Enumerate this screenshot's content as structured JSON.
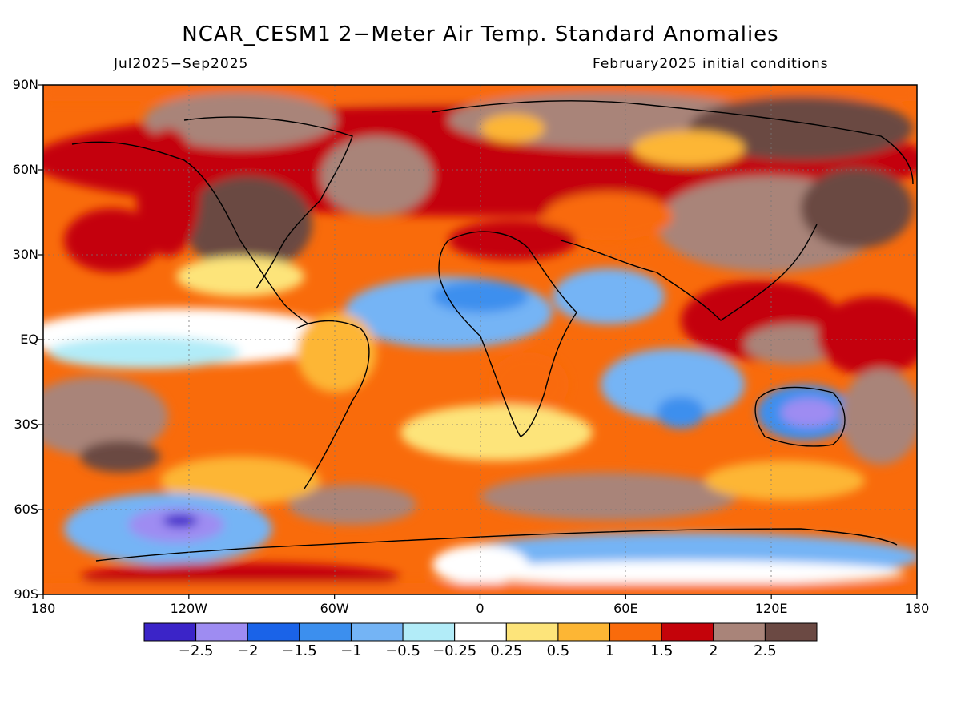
{
  "title": "NCAR_CESM1 2−Meter Air Temp. Standard Anomalies",
  "period": "Jul2025−Sep2025",
  "initial_conditions": "February2025 initial conditions",
  "lat_labels": [
    "90N",
    "60N",
    "30N",
    "EQ",
    "30S",
    "60S",
    "90S"
  ],
  "lon_labels": [
    "180",
    "120W",
    "60W",
    "0",
    "60E",
    "120E",
    "180"
  ],
  "colorbar": {
    "colors": [
      "#3b24c8",
      "#9e8cf2",
      "#1a63e8",
      "#3c8fee",
      "#74b4f5",
      "#b2ecf8",
      "#ffffff",
      "#fde47a",
      "#fdb634",
      "#f96b0b",
      "#c4030a",
      "#a98479",
      "#6b4943"
    ],
    "labels": [
      "−2.5",
      "−2",
      "−1.5",
      "−1",
      "−0.5",
      "−0.25",
      "0.25",
      "0.5",
      "1",
      "1.5",
      "2",
      "2.5"
    ]
  }
}
